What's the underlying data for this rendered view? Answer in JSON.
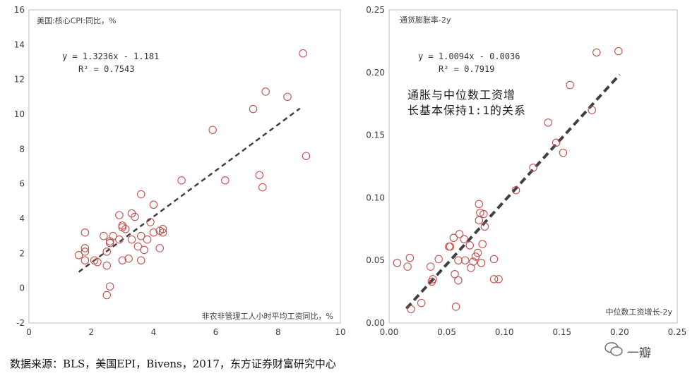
{
  "charts": [
    {
      "title": "美国:核心CPI:同比，%",
      "xlabel": "非农非管理工人小时平均工资同比，%",
      "equation": "y = 1.3236x - 1.181",
      "r2": "R² = 0.7543",
      "annotation": ""
    },
    {
      "title": "通货膨胀率-2y",
      "xlabel": "中位数工资增长-2y",
      "equation": "y = 1.0094x - 0.0036",
      "r2": "R² = 0.7919",
      "annotation_line1": "通胀与中位数工资增",
      "annotation_line2": "长基本保持1:1的关系"
    }
  ],
  "footer": {
    "source": "数据来源：BLS，美国EPI，Bivens，2017，东方证券财富研究中心",
    "watermark": "一瓣"
  },
  "colors": {
    "marker": "#c0504d",
    "trendline": "#404040",
    "axis": "#bfbfbf",
    "text": "#404040"
  },
  "chart_data": [
    {
      "type": "scatter",
      "xlim": [
        0,
        10
      ],
      "ylim": [
        -2,
        16
      ],
      "xticks": [
        "0",
        "2",
        "4",
        "6",
        "8",
        "10"
      ],
      "yticks": [
        "-2",
        "0",
        "2",
        "4",
        "6",
        "8",
        "10",
        "12",
        "14",
        "16"
      ],
      "grid": false,
      "trendline": {
        "slope": 1.3236,
        "intercept": -1.181,
        "x_range": [
          1.6,
          8.7
        ]
      },
      "points": [
        [
          1.6,
          1.9
        ],
        [
          1.8,
          1.6
        ],
        [
          1.8,
          2.1
        ],
        [
          1.8,
          2.3
        ],
        [
          1.8,
          3.2
        ],
        [
          2.1,
          1.6
        ],
        [
          2.2,
          1.5
        ],
        [
          2.4,
          3.0
        ],
        [
          2.5,
          2.1
        ],
        [
          2.5,
          1.3
        ],
        [
          2.5,
          -0.4
        ],
        [
          2.6,
          0.1
        ],
        [
          2.6,
          2.7
        ],
        [
          2.6,
          2.6
        ],
        [
          2.7,
          3.0
        ],
        [
          2.9,
          2.8
        ],
        [
          2.9,
          4.2
        ],
        [
          3.0,
          3.6
        ],
        [
          3.0,
          3.5
        ],
        [
          3.0,
          1.6
        ],
        [
          3.1,
          3.4
        ],
        [
          3.2,
          1.7
        ],
        [
          3.3,
          2.8
        ],
        [
          3.3,
          4.3
        ],
        [
          3.4,
          4.1
        ],
        [
          3.5,
          2.4
        ],
        [
          3.6,
          5.4
        ],
        [
          3.6,
          1.6
        ],
        [
          3.6,
          3.0
        ],
        [
          3.7,
          2.2
        ],
        [
          3.8,
          2.8
        ],
        [
          3.9,
          3.8
        ],
        [
          4.0,
          4.8
        ],
        [
          4.0,
          3.2
        ],
        [
          4.2,
          2.3
        ],
        [
          4.2,
          3.3
        ],
        [
          4.3,
          3.2
        ],
        [
          4.3,
          3.4
        ],
        [
          4.9,
          6.2
        ],
        [
          5.9,
          9.1
        ],
        [
          6.3,
          6.2
        ],
        [
          7.2,
          10.3
        ],
        [
          7.4,
          6.5
        ],
        [
          7.5,
          5.8
        ],
        [
          7.6,
          11.3
        ],
        [
          8.3,
          11.0
        ],
        [
          8.8,
          13.5
        ],
        [
          8.9,
          7.6
        ]
      ]
    },
    {
      "type": "scatter",
      "xlim": [
        0,
        0.25
      ],
      "ylim": [
        0,
        0.25
      ],
      "xticks": [
        "0.00",
        "0.05",
        "0.10",
        "0.15",
        "0.20",
        "0.25"
      ],
      "yticks": [
        "0.00",
        "0.05",
        "0.10",
        "0.15",
        "0.20",
        "0.25"
      ],
      "grid": false,
      "trendline": {
        "slope": 1.0094,
        "intercept": -0.0036,
        "x_range": [
          0.015,
          0.2
        ]
      },
      "points": [
        [
          0.007,
          0.048
        ],
        [
          0.016,
          0.045
        ],
        [
          0.018,
          0.052
        ],
        [
          0.019,
          0.011
        ],
        [
          0.028,
          0.016
        ],
        [
          0.036,
          0.045
        ],
        [
          0.037,
          0.033
        ],
        [
          0.038,
          0.035
        ],
        [
          0.043,
          0.051
        ],
        [
          0.052,
          0.061
        ],
        [
          0.053,
          0.061
        ],
        [
          0.056,
          0.068
        ],
        [
          0.057,
          0.039
        ],
        [
          0.058,
          0.013
        ],
        [
          0.06,
          0.034
        ],
        [
          0.06,
          0.05
        ],
        [
          0.061,
          0.071
        ],
        [
          0.065,
          0.067
        ],
        [
          0.066,
          0.05
        ],
        [
          0.07,
          0.062
        ],
        [
          0.071,
          0.044
        ],
        [
          0.073,
          0.049
        ],
        [
          0.075,
          0.053
        ],
        [
          0.077,
          0.056
        ],
        [
          0.078,
          0.095
        ],
        [
          0.078,
          0.082
        ],
        [
          0.079,
          0.088
        ],
        [
          0.08,
          0.048
        ],
        [
          0.081,
          0.063
        ],
        [
          0.082,
          0.087
        ],
        [
          0.083,
          0.077
        ],
        [
          0.091,
          0.035
        ],
        [
          0.091,
          0.051
        ],
        [
          0.095,
          0.035
        ],
        [
          0.11,
          0.106
        ],
        [
          0.125,
          0.124
        ],
        [
          0.138,
          0.16
        ],
        [
          0.145,
          0.144
        ],
        [
          0.151,
          0.136
        ],
        [
          0.157,
          0.19
        ],
        [
          0.176,
          0.17
        ],
        [
          0.18,
          0.216
        ],
        [
          0.199,
          0.217
        ]
      ]
    }
  ]
}
